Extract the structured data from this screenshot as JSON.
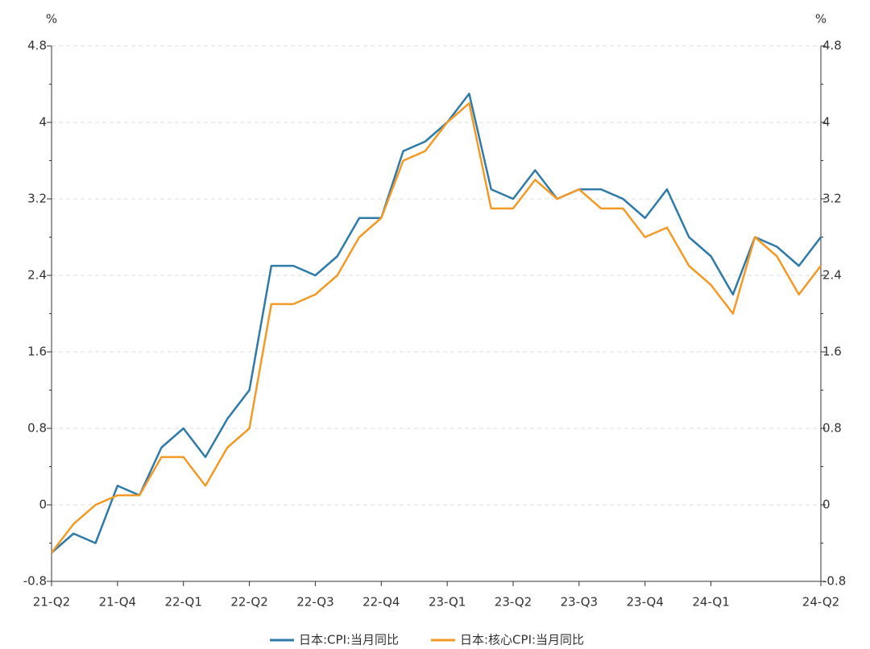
{
  "chart_data": {
    "type": "line",
    "y_unit": "%",
    "y2_unit": "%",
    "categories": [
      "21-Q2",
      null,
      null,
      "21-Q4",
      null,
      null,
      "22-Q1",
      null,
      null,
      "22-Q2",
      null,
      null,
      "22-Q3",
      null,
      null,
      "22-Q4",
      null,
      null,
      "23-Q1",
      null,
      null,
      "23-Q2",
      null,
      null,
      "23-Q3",
      null,
      null,
      "23-Q4",
      null,
      null,
      "24-Q1",
      null,
      null,
      null,
      null,
      "24-Q2"
    ],
    "series": [
      {
        "name": "日本:CPI:当月同比",
        "color": "#2e7aa8",
        "values": [
          -0.5,
          -0.3,
          -0.4,
          0.2,
          0.1,
          0.6,
          0.8,
          0.5,
          0.9,
          1.2,
          2.5,
          2.5,
          2.4,
          2.6,
          3.0,
          3.0,
          3.7,
          3.8,
          4.0,
          4.3,
          3.3,
          3.2,
          3.5,
          3.2,
          3.3,
          3.3,
          3.2,
          3.0,
          3.3,
          2.8,
          2.6,
          2.2,
          2.8,
          2.7,
          2.5,
          2.8
        ]
      },
      {
        "name": "日本:核心CPI:当月同比",
        "color": "#f39a26",
        "values": [
          -0.5,
          -0.2,
          0.0,
          0.1,
          0.1,
          0.5,
          0.5,
          0.2,
          0.6,
          0.8,
          2.1,
          2.1,
          2.2,
          2.4,
          2.8,
          3.0,
          3.6,
          3.7,
          4.0,
          4.2,
          3.1,
          3.1,
          3.4,
          3.2,
          3.3,
          3.1,
          3.1,
          2.8,
          2.9,
          2.5,
          2.3,
          2.0,
          2.8,
          2.6,
          2.2,
          2.5
        ]
      }
    ],
    "ylim": [
      -0.8,
      4.8
    ],
    "yticks": [
      -0.8,
      0,
      0.8,
      1.6,
      2.4,
      3.2,
      4,
      4.8
    ],
    "y2lim": [
      -0.8,
      4.8
    ],
    "y2ticks": [
      -0.8,
      0,
      0.8,
      1.6,
      2.4,
      3.2,
      4,
      4.8
    ],
    "grid": true,
    "legend": "bottom"
  }
}
